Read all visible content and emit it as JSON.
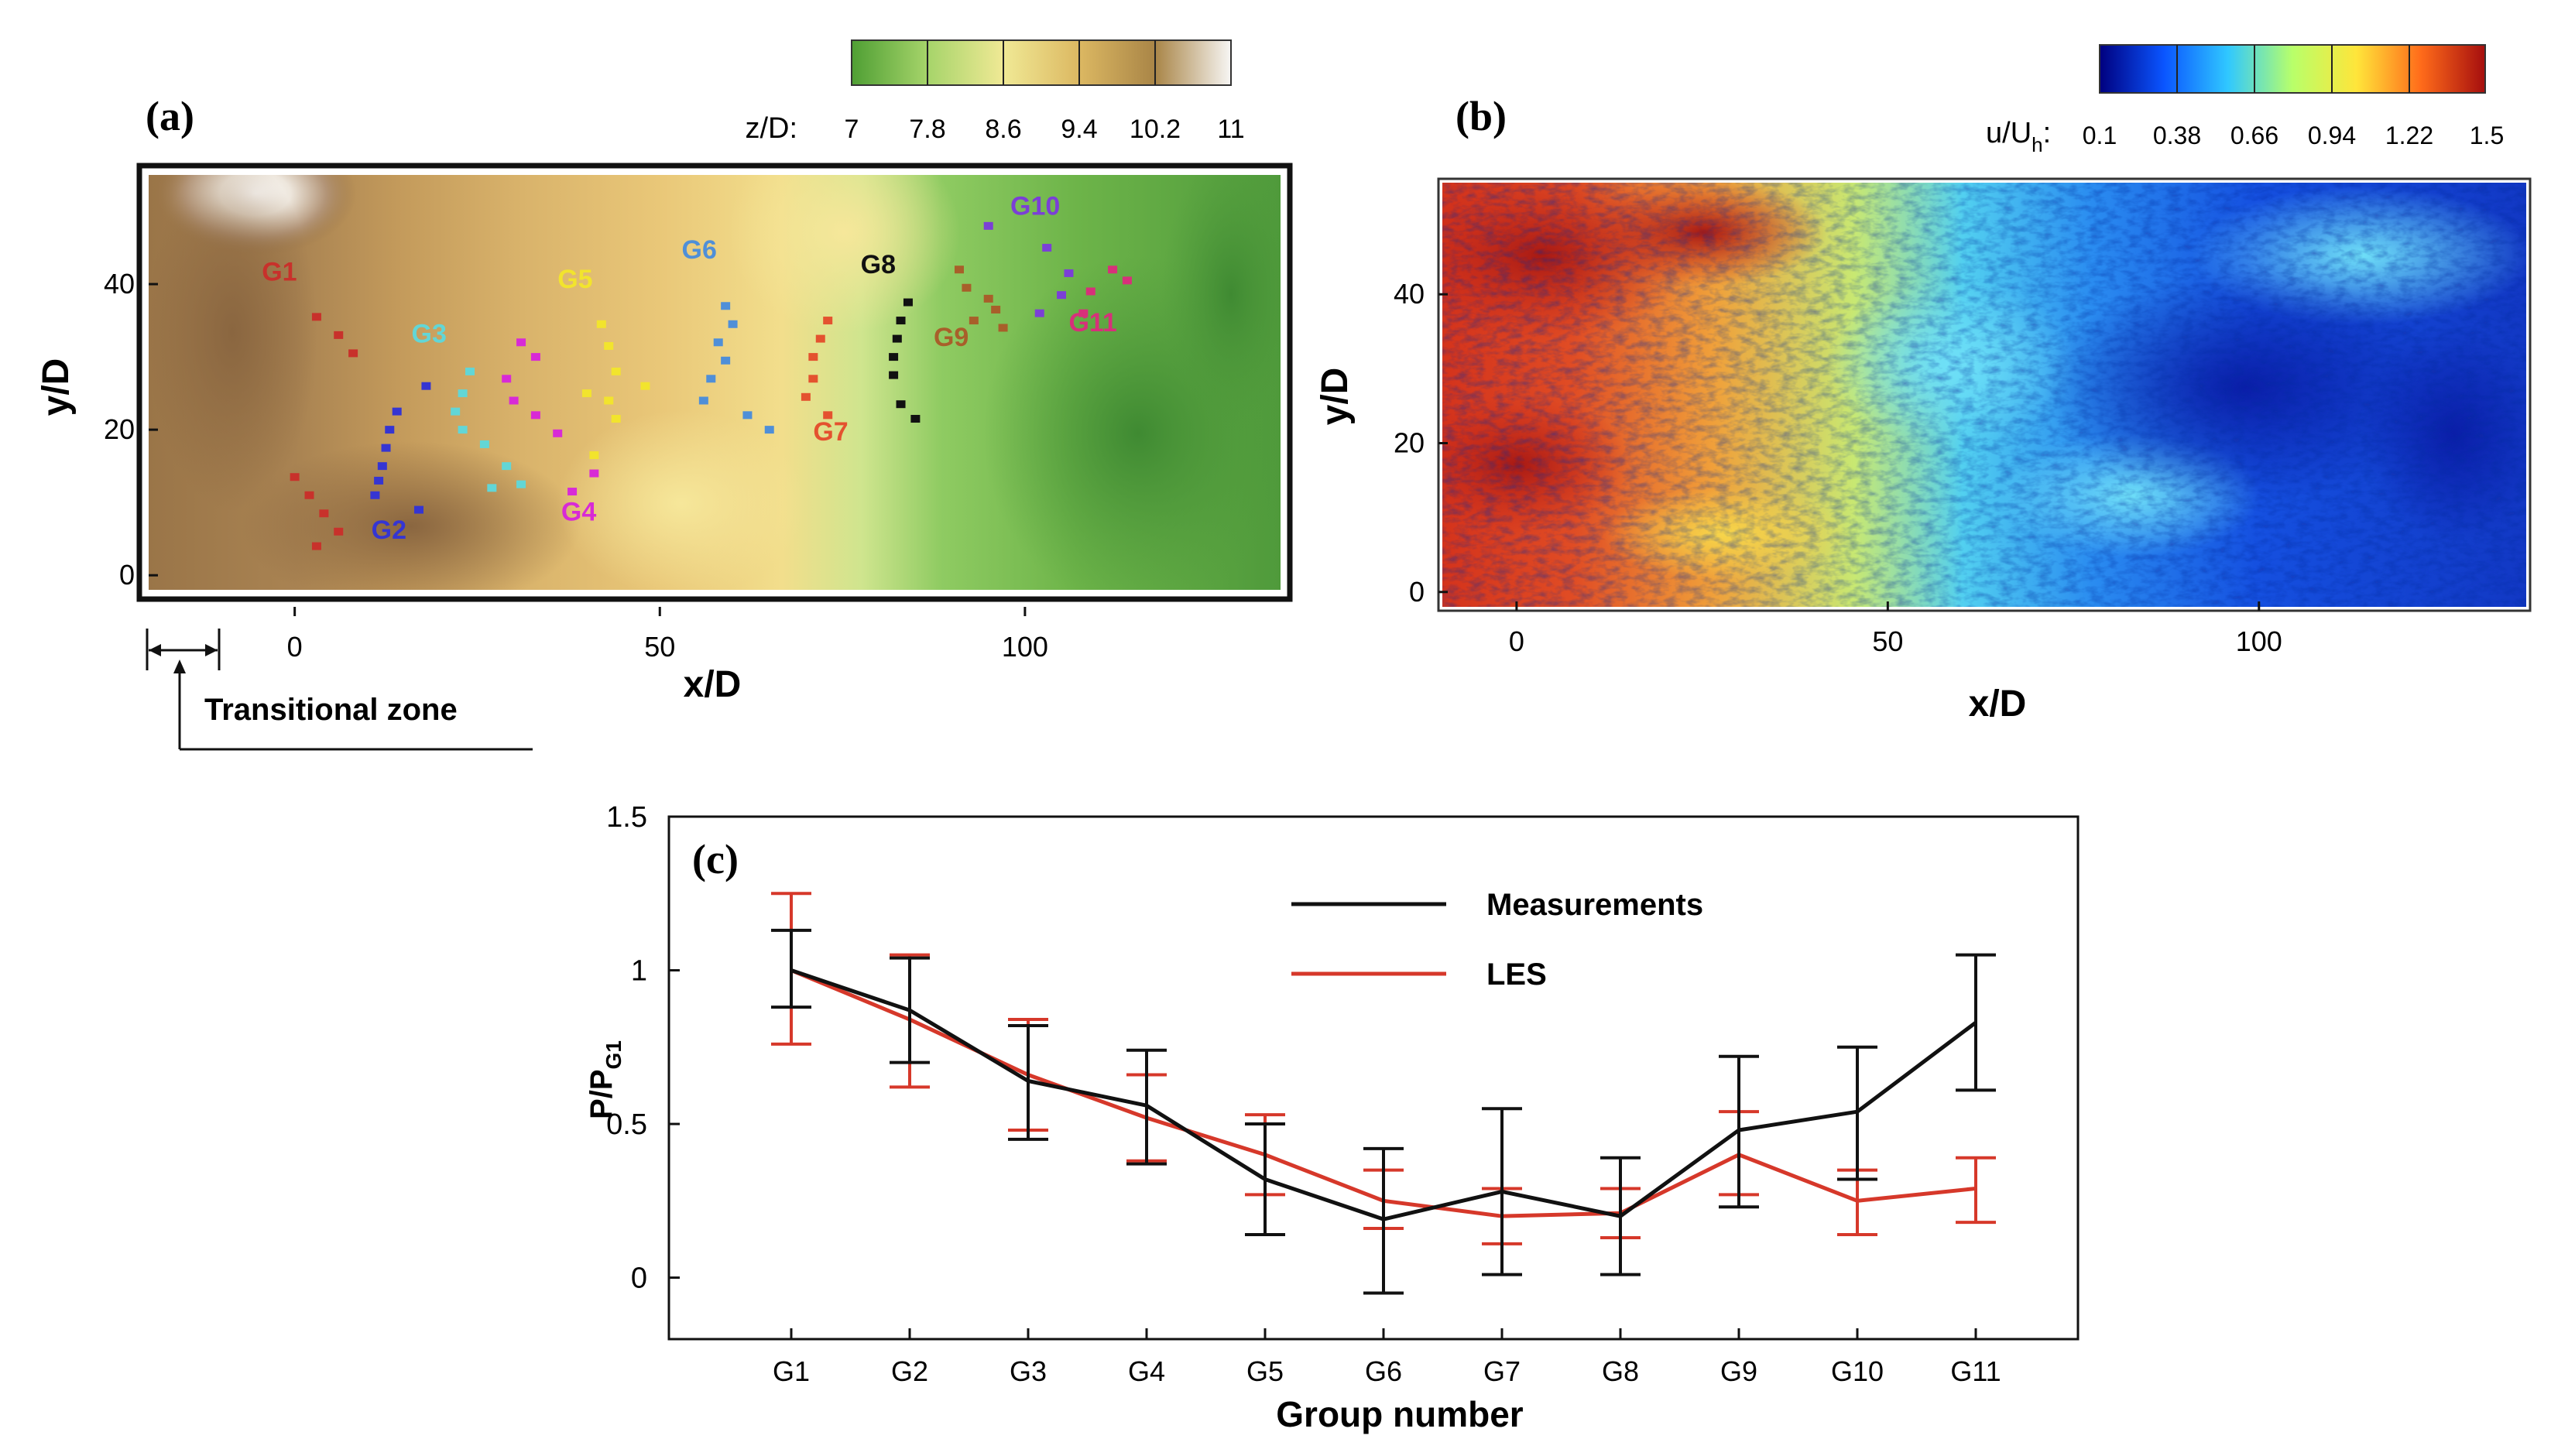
{
  "chart_data": [
    {
      "panel": "(a)",
      "type": "heatmap",
      "title": "",
      "xlabel": "x/D",
      "ylabel": "y/D",
      "xticks": [
        0,
        50,
        100
      ],
      "yticks": [
        0,
        20,
        40
      ],
      "xlim": [
        -20,
        135
      ],
      "ylim": [
        -2,
        55
      ],
      "colorbar": {
        "label": "z/D:",
        "ticks": [
          "7",
          "7.8",
          "8.6",
          "9.4",
          "10.2",
          "11"
        ],
        "colors": [
          "#4f9f34",
          "#a6d46a",
          "#f0e995",
          "#dcb862",
          "#a98547",
          "#f7f6f4"
        ]
      },
      "annotation": "Transitional zone",
      "groups": [
        {
          "name": "G1",
          "color": "#c8312b",
          "label_at": [
            -4.5,
            40.5
          ],
          "points": [
            [
              3,
              35.5
            ],
            [
              6,
              33
            ],
            [
              8,
              30.5
            ],
            [
              0,
              13.5
            ],
            [
              2,
              11
            ],
            [
              4,
              8.5
            ],
            [
              6,
              6
            ],
            [
              3,
              4
            ]
          ]
        },
        {
          "name": "G2",
          "color": "#3535d2",
          "label_at": [
            10.5,
            5
          ],
          "points": [
            [
              14,
              22.5
            ],
            [
              13,
              20
            ],
            [
              12.5,
              17.5
            ],
            [
              12,
              15
            ],
            [
              11.5,
              13
            ],
            [
              11,
              11
            ],
            [
              17,
              9
            ],
            [
              18,
              26
            ]
          ]
        },
        {
          "name": "G3",
          "color": "#62d6d6",
          "label_at": [
            16,
            32
          ],
          "points": [
            [
              24,
              28
            ],
            [
              23,
              25
            ],
            [
              22,
              22.5
            ],
            [
              23,
              20
            ],
            [
              26,
              18
            ],
            [
              29,
              15
            ],
            [
              31,
              12.5
            ],
            [
              27,
              12
            ]
          ]
        },
        {
          "name": "G4",
          "color": "#d82ad6",
          "label_at": [
            36.5,
            7.5
          ],
          "points": [
            [
              31,
              32
            ],
            [
              33,
              30
            ],
            [
              30,
              24
            ],
            [
              33,
              22
            ],
            [
              36,
              19.5
            ],
            [
              38,
              11.5
            ],
            [
              41,
              14
            ],
            [
              29,
              27
            ]
          ]
        },
        {
          "name": "G5",
          "color": "#f2e42d",
          "label_at": [
            36,
            39.5
          ],
          "points": [
            [
              42,
              34.5
            ],
            [
              43,
              31.5
            ],
            [
              44,
              28
            ],
            [
              43,
              24
            ],
            [
              44,
              21.5
            ],
            [
              48,
              26
            ],
            [
              40,
              25
            ],
            [
              41,
              16.5
            ]
          ]
        },
        {
          "name": "G6",
          "color": "#4f8fd8",
          "label_at": [
            53,
            43.5
          ],
          "points": [
            [
              59,
              37
            ],
            [
              60,
              34.5
            ],
            [
              58,
              32
            ],
            [
              59,
              29.5
            ],
            [
              57,
              27
            ],
            [
              56,
              24
            ],
            [
              62,
              22
            ],
            [
              65,
              20
            ]
          ]
        },
        {
          "name": "G7",
          "color": "#e4522f",
          "label_at": [
            71,
            18.5
          ],
          "points": [
            [
              73,
              35
            ],
            [
              72,
              32.5
            ],
            [
              71,
              30
            ],
            [
              71,
              27
            ],
            [
              70,
              24.5
            ],
            [
              73,
              22
            ]
          ]
        },
        {
          "name": "G8",
          "color": "#111111",
          "label_at": [
            77.5,
            41.5
          ],
          "points": [
            [
              84,
              37.5
            ],
            [
              83,
              35
            ],
            [
              82.5,
              32.5
            ],
            [
              82,
              30
            ],
            [
              82,
              27.5
            ],
            [
              83,
              23.5
            ],
            [
              85,
              21.5
            ]
          ]
        },
        {
          "name": "G9",
          "color": "#a85f2a",
          "label_at": [
            87.5,
            31.5
          ],
          "points": [
            [
              91,
              42
            ],
            [
              92,
              39.5
            ],
            [
              95,
              38
            ],
            [
              93,
              35
            ],
            [
              96,
              36.5
            ],
            [
              97,
              34
            ]
          ]
        },
        {
          "name": "G10",
          "color": "#7b3fd6",
          "label_at": [
            98,
            49.5
          ],
          "points": [
            [
              95,
              48
            ],
            [
              103,
              45
            ],
            [
              106,
              41.5
            ],
            [
              105,
              38.5
            ],
            [
              102,
              36
            ]
          ]
        },
        {
          "name": "G11",
          "color": "#d7307a",
          "label_at": [
            106,
            33.5
          ],
          "points": [
            [
              109,
              39
            ],
            [
              112,
              42
            ],
            [
              114,
              40.5
            ],
            [
              108,
              36
            ]
          ]
        }
      ]
    },
    {
      "panel": "(b)",
      "type": "heatmap",
      "title": "",
      "xlabel": "x/D",
      "ylabel": "y/D",
      "xticks": [
        0,
        50,
        100
      ],
      "yticks": [
        0,
        20,
        40
      ],
      "xlim": [
        -10,
        136
      ],
      "ylim": [
        -2,
        55
      ],
      "colorbar": {
        "label": "u/U",
        "label_subscript": "h",
        "label_suffix": ":",
        "ticks": [
          "0.1",
          "0.38",
          "0.66",
          "0.94",
          "1.22",
          "1.5"
        ],
        "colors": [
          "#00007f",
          "#0a55ff",
          "#30c8ff",
          "#b8ff6a",
          "#ffe53a",
          "#ff6b1a",
          "#a50e0e"
        ]
      }
    },
    {
      "panel": "(c)",
      "type": "line",
      "title": "",
      "xlabel": "Group number",
      "ylabel": "P/P",
      "ylabel_subscript": "G1",
      "ylim": [
        -0.2,
        1.5
      ],
      "yticks": [
        0,
        0.5,
        1,
        1.5
      ],
      "ytick_labels": [
        "0",
        "0.5",
        "1",
        "1.5"
      ],
      "legend_position": "top-center",
      "categories": [
        "G1",
        "G2",
        "G3",
        "G4",
        "G5",
        "G6",
        "G7",
        "G8",
        "G9",
        "G10",
        "G11"
      ],
      "series": [
        {
          "name": "Measurements",
          "color": "#111111",
          "values": [
            1.0,
            0.87,
            0.64,
            0.56,
            0.32,
            0.19,
            0.28,
            0.2,
            0.48,
            0.54,
            0.83
          ],
          "error_low": [
            0.88,
            0.7,
            0.45,
            0.37,
            0.14,
            -0.05,
            0.01,
            0.01,
            0.23,
            0.32,
            0.61
          ],
          "error_high": [
            1.13,
            1.04,
            0.82,
            0.74,
            0.5,
            0.42,
            0.55,
            0.39,
            0.72,
            0.75,
            1.05
          ]
        },
        {
          "name": "LES",
          "color": "#d6382a",
          "values": [
            1.0,
            0.84,
            0.66,
            0.52,
            0.4,
            0.25,
            0.2,
            0.21,
            0.4,
            0.25,
            0.29
          ],
          "error_low": [
            0.76,
            0.62,
            0.48,
            0.38,
            0.27,
            0.16,
            0.11,
            0.13,
            0.27,
            0.14,
            0.18
          ],
          "error_high": [
            1.25,
            1.05,
            0.84,
            0.66,
            0.53,
            0.35,
            0.29,
            0.29,
            0.54,
            0.35,
            0.39
          ]
        }
      ]
    }
  ]
}
